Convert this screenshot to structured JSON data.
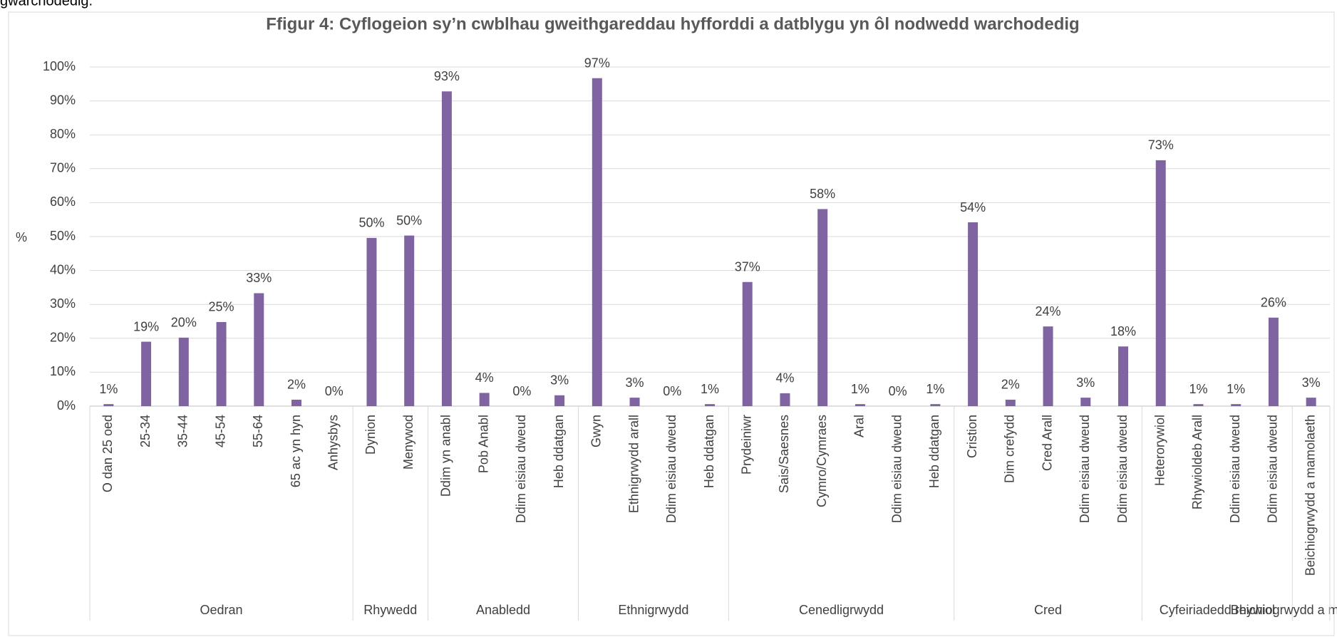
{
  "page_top_text": "gwarchodedig.",
  "chart_data": {
    "type": "bar",
    "title": "Ffigur 4: Cyflogeion sy’n cwblhau gweithgareddau hyfforddi a datblygu yn ôl nodwedd warchodedig",
    "ylabel": "%",
    "color": "#8064a2",
    "grid": true,
    "ylim": [
      0,
      100
    ],
    "yticks": [
      {
        "value": 0,
        "label": "0%"
      },
      {
        "value": 10,
        "label": "10%"
      },
      {
        "value": 20,
        "label": "20%"
      },
      {
        "value": 30,
        "label": "30%"
      },
      {
        "value": 40,
        "label": "40%"
      },
      {
        "value": 50,
        "label": "50%"
      },
      {
        "value": 60,
        "label": "60%"
      },
      {
        "value": 70,
        "label": "70%"
      },
      {
        "value": 80,
        "label": "80%"
      },
      {
        "value": 90,
        "label": "90%"
      },
      {
        "value": 100,
        "label": "100%"
      }
    ],
    "groups": [
      {
        "name": "Oedran",
        "categories": [
          "O dan 25 oed",
          "25-34",
          "35-44",
          "45-54",
          "55-64",
          "65 ac yn hyn",
          "Anhysbys"
        ],
        "values": [
          0.6,
          19,
          20.2,
          24.8,
          33.3,
          1.9,
          0
        ],
        "value_labels": [
          "1%",
          "19%",
          "20%",
          "25%",
          "33%",
          "2%",
          "0%"
        ]
      },
      {
        "name": "Rhywedd",
        "categories": [
          "Dynion",
          "Menywod"
        ],
        "values": [
          49.6,
          50.3
        ],
        "value_labels": [
          "50%",
          "50%"
        ]
      },
      {
        "name": "Anabledd",
        "categories": [
          "Ddim yn anabl",
          "Pob Anabl",
          "Ddim eisiau dweud",
          "Heb ddatgan"
        ],
        "values": [
          92.8,
          3.9,
          0,
          3.2
        ],
        "value_labels": [
          "93%",
          "4%",
          "0%",
          "3%"
        ]
      },
      {
        "name": "Ethnigrwydd",
        "categories": [
          "Gwyn",
          "Ethnigrwydd arall",
          "Ddim eisiau dweud",
          "Heb ddatgan"
        ],
        "values": [
          96.7,
          2.5,
          0,
          0.6
        ],
        "value_labels": [
          "97%",
          "3%",
          "0%",
          "1%"
        ]
      },
      {
        "name": "Cenedligrwydd",
        "categories": [
          "Prydeiniwr",
          "Sais/Saesnes",
          "Cymro/Cymraes",
          "Aral",
          "Ddim eisiau dweud",
          "Heb ddatgan"
        ],
        "values": [
          36.6,
          3.8,
          58.1,
          0.6,
          0,
          0.6
        ],
        "value_labels": [
          "37%",
          "4%",
          "58%",
          "1%",
          "0%",
          "1%"
        ]
      },
      {
        "name": "Cred",
        "categories": [
          "Cristion",
          "Dim crefydd",
          "Cred Arall",
          "Ddim eisiau dweud",
          "Ddim eisiau dweud"
        ],
        "values": [
          54.2,
          1.9,
          23.5,
          2.5,
          17.6
        ],
        "value_labels": [
          "54%",
          "2%",
          "24%",
          "3%",
          "18%"
        ]
      },
      {
        "name": "Cyfeiriadedd rhywiol",
        "categories": [
          "Heterorywiol",
          "Rhywioldeb Arall",
          "Ddim eisiau dweud",
          "Ddim eisiau dweud"
        ],
        "values": [
          72.5,
          0.6,
          0.6,
          26.1
        ],
        "value_labels": [
          "73%",
          "1%",
          "1%",
          "26%"
        ]
      },
      {
        "name": "Beichiogrwydd a mamolaeth",
        "categories": [
          "Beichiogrwydd a mamolaeth"
        ],
        "values": [
          2.5
        ],
        "value_labels": [
          "3%"
        ]
      }
    ]
  }
}
